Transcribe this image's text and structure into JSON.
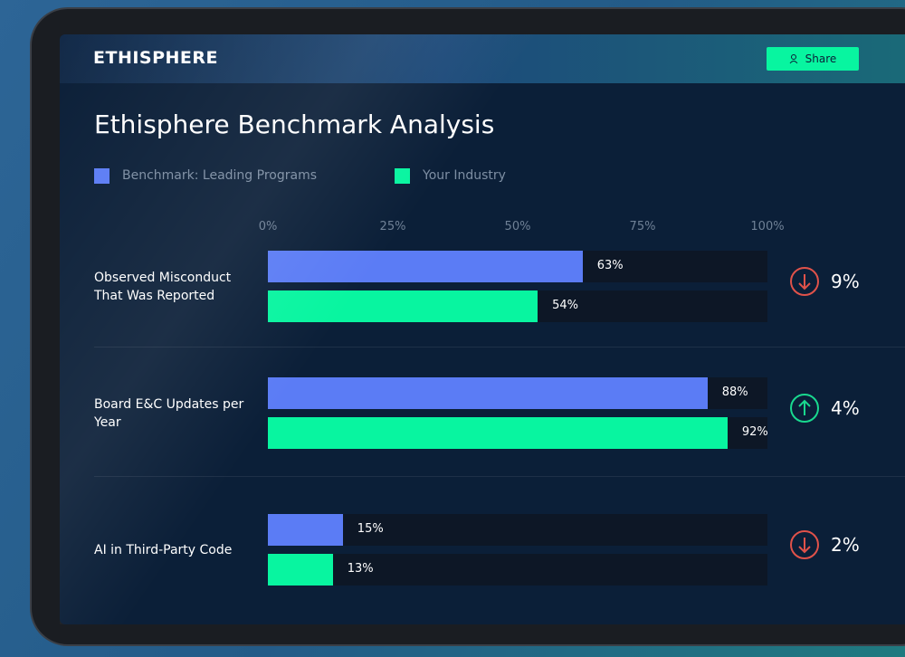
{
  "header": {
    "brand": "ETHISPHERE",
    "share": "Share"
  },
  "chart_data": {
    "type": "bar",
    "orientation": "horizontal",
    "title": "Ethisphere Benchmark Analysis",
    "categories": [
      "Observed Misconduct That Was Reported",
      "Board E&C Updates per Year",
      "AI in Third-Party Code"
    ],
    "series": [
      {
        "name": "Benchmark: Leading Programs",
        "color": "#5b7cf5",
        "values": [
          63,
          88,
          15
        ],
        "value_labels": [
          "63%",
          "88%",
          "15%"
        ]
      },
      {
        "name": "Your Industry",
        "color": "#08f5a0",
        "values": [
          54,
          92,
          13
        ],
        "value_labels": [
          "54%",
          "92%",
          "13%"
        ]
      }
    ],
    "xlim": [
      0,
      100
    ],
    "xticks": [
      {
        "value": 0,
        "label": "0%"
      },
      {
        "value": 25,
        "label": "25%"
      },
      {
        "value": 50,
        "label": "50%"
      },
      {
        "value": 75,
        "label": "75%"
      },
      {
        "value": 100,
        "label": "100%"
      }
    ],
    "difference": {
      "values": [
        9,
        4,
        2
      ],
      "value_labels": [
        "9%",
        "4%",
        "2%"
      ],
      "direction": [
        "down",
        "up",
        "down"
      ],
      "colors": {
        "down": "#e0524a",
        "up": "#19d98f"
      }
    }
  }
}
